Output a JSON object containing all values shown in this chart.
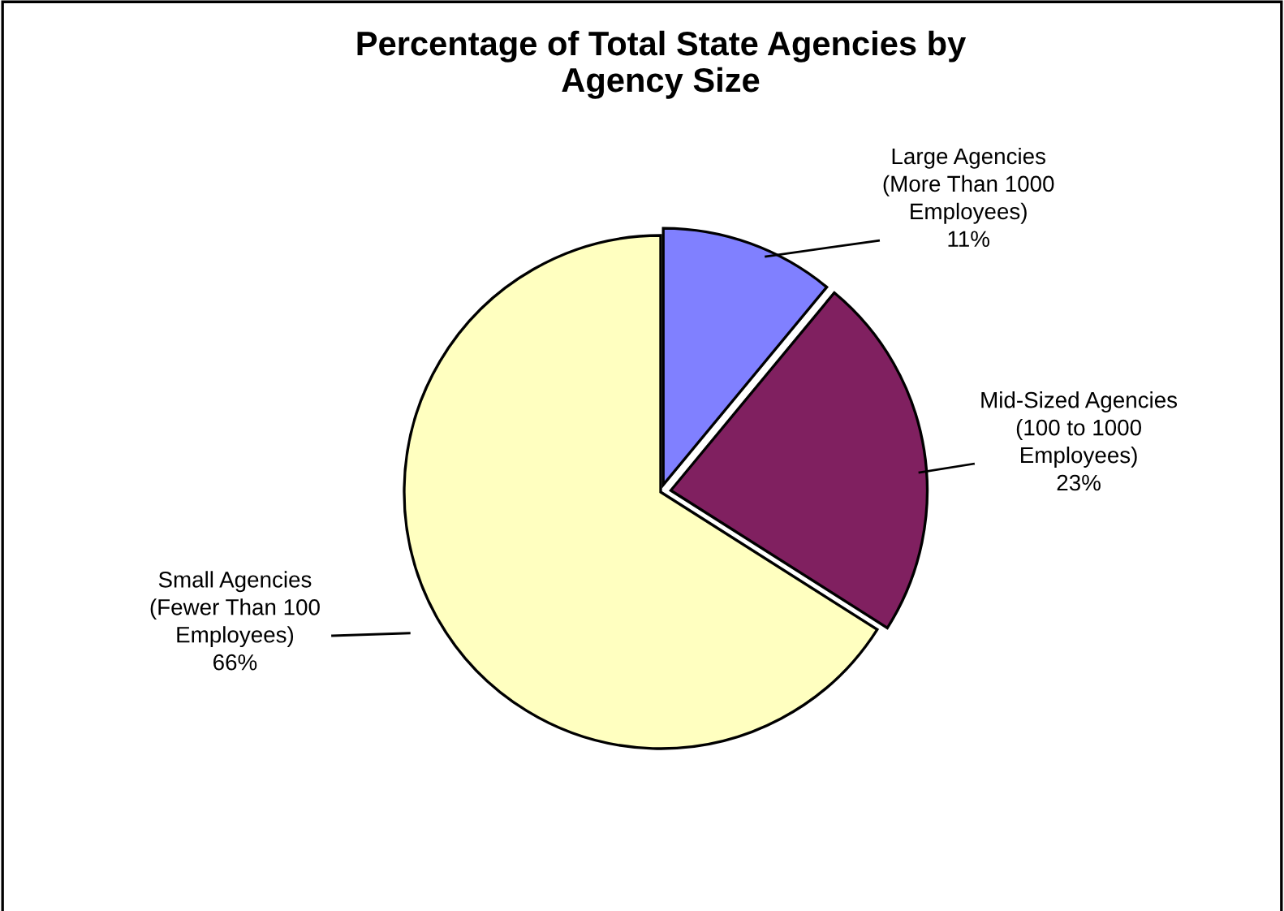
{
  "chart_data": {
    "type": "pie",
    "title": "Percentage of Total State Agencies by\nAgency Size",
    "categories": [
      "Large Agencies\n(More Than 1000\nEmployees)",
      "Mid-Sized Agencies\n(100 to 1000\nEmployees)",
      "Small Agencies\n(Fewer Than 100\nEmployees)"
    ],
    "values": [
      11,
      23,
      66
    ],
    "colors": [
      "#8080ff",
      "#802060",
      "#ffffc0"
    ],
    "value_labels": [
      "11%",
      "23%",
      "66%"
    ]
  }
}
